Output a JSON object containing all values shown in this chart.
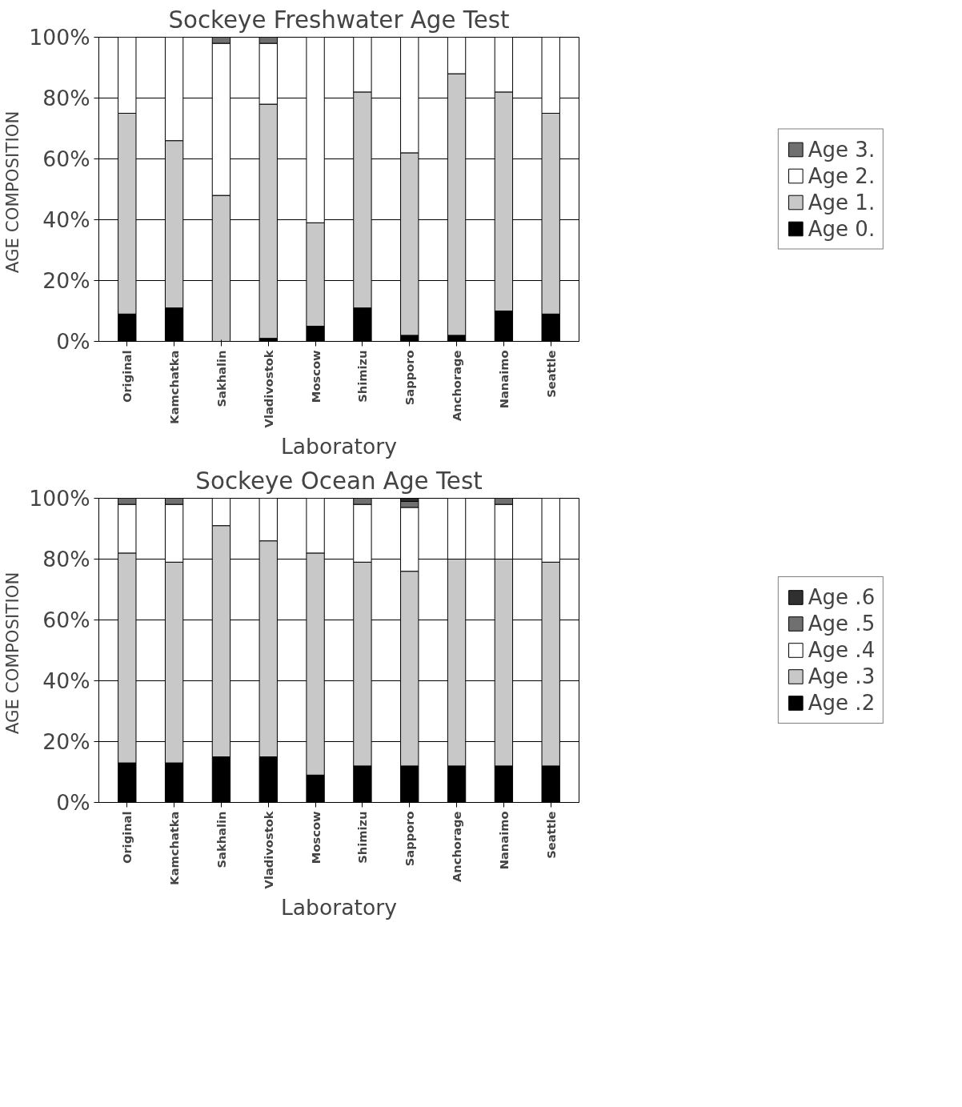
{
  "chart_data": [
    {
      "type": "bar",
      "title": "Sockeye Freshwater Age Test",
      "xlabel": "Laboratory",
      "ylabel": "AGE  COMPOSITION",
      "stacked": true,
      "grid": "y",
      "legend": "right",
      "categories": [
        "Original",
        "Kamchatka",
        "Sakhalin",
        "Vladivostok",
        "Moscow",
        "Shimizu",
        "Sapporo",
        "Anchorage",
        "Nanaimo",
        "Seattle"
      ],
      "ylim": [
        0,
        100
      ],
      "yticks": [
        {
          "value": 0,
          "label": "0%"
        },
        {
          "value": 20,
          "label": "20%"
        },
        {
          "value": 40,
          "label": "40%"
        },
        {
          "value": 60,
          "label": "60%"
        },
        {
          "value": 80,
          "label": "80%"
        },
        {
          "value": 100,
          "label": "100%"
        }
      ],
      "series": [
        {
          "name": "Age 0.",
          "color": "#000000",
          "values": [
            9,
            11,
            0,
            1,
            5,
            11,
            2,
            2,
            10,
            9
          ]
        },
        {
          "name": "Age 1.",
          "color": "#c8c8c8",
          "values": [
            66,
            55,
            48,
            77,
            34,
            71,
            60,
            86,
            72,
            66
          ]
        },
        {
          "name": "Age 2.",
          "color": "#ffffff",
          "values": [
            25,
            34,
            50,
            20,
            61,
            18,
            38,
            12,
            18,
            25
          ]
        },
        {
          "name": "Age 3.",
          "color": "#707070",
          "values": [
            0,
            0,
            2,
            2,
            0,
            0,
            0,
            0,
            0,
            0
          ]
        }
      ]
    },
    {
      "type": "bar",
      "title": "Sockeye Ocean Age Test",
      "xlabel": "Laboratory",
      "ylabel": "AGE  COMPOSITION",
      "stacked": true,
      "grid": "y",
      "legend": "right",
      "categories": [
        "Original",
        "Kamchatka",
        "Sakhalin",
        "Vladivostok",
        "Moscow",
        "Shimizu",
        "Sapporo",
        "Anchorage",
        "Nanaimo",
        "Seattle"
      ],
      "ylim": [
        0,
        100
      ],
      "yticks": [
        {
          "value": 0,
          "label": "0%"
        },
        {
          "value": 20,
          "label": "20%"
        },
        {
          "value": 40,
          "label": "40%"
        },
        {
          "value": 60,
          "label": "60%"
        },
        {
          "value": 80,
          "label": "80%"
        },
        {
          "value": 100,
          "label": "100%"
        }
      ],
      "series": [
        {
          "name": "Age .2",
          "color": "#000000",
          "values": [
            13,
            13,
            15,
            15,
            9,
            12,
            12,
            12,
            12,
            12
          ]
        },
        {
          "name": "Age .3",
          "color": "#c8c8c8",
          "values": [
            69,
            66,
            76,
            71,
            73,
            67,
            64,
            68,
            68,
            67
          ]
        },
        {
          "name": "Age .4",
          "color": "#ffffff",
          "values": [
            16,
            19,
            9,
            14,
            18,
            19,
            21,
            20,
            18,
            21
          ]
        },
        {
          "name": "Age .5",
          "color": "#707070",
          "values": [
            2,
            2,
            0,
            0,
            0,
            2,
            2,
            0,
            2,
            0
          ]
        },
        {
          "name": "Age .6",
          "color": "#303030",
          "values": [
            0,
            0,
            0,
            0,
            0,
            0,
            1,
            0,
            0,
            0
          ]
        }
      ]
    }
  ]
}
